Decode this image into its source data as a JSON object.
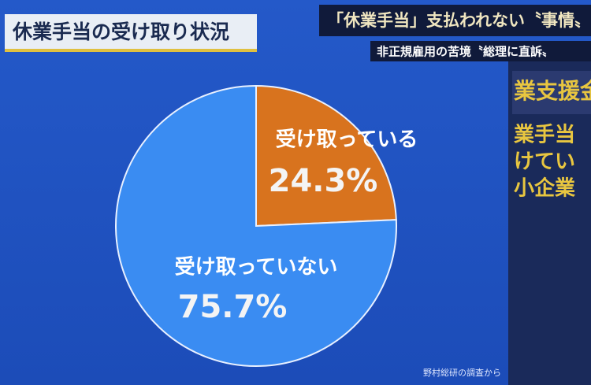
{
  "chart_data": {
    "type": "pie",
    "title": "休業手当の受け取り状況",
    "categories": [
      "受け取っている",
      "受け取っていない"
    ],
    "values": [
      24.3,
      75.7
    ],
    "value_labels": [
      "24.3%",
      "75.7%"
    ],
    "colors": [
      "#d8731e",
      "#3a8cf2"
    ],
    "source": "野村総研の調査から"
  },
  "banner": {
    "headline": "「休業手当」支払われない〝事情〟",
    "subline": "非正規雇用の苦境〝総理に直訴〟"
  },
  "side_panel": {
    "lines": [
      "業支援金",
      "業手当",
      "けてい",
      "小企業"
    ]
  }
}
